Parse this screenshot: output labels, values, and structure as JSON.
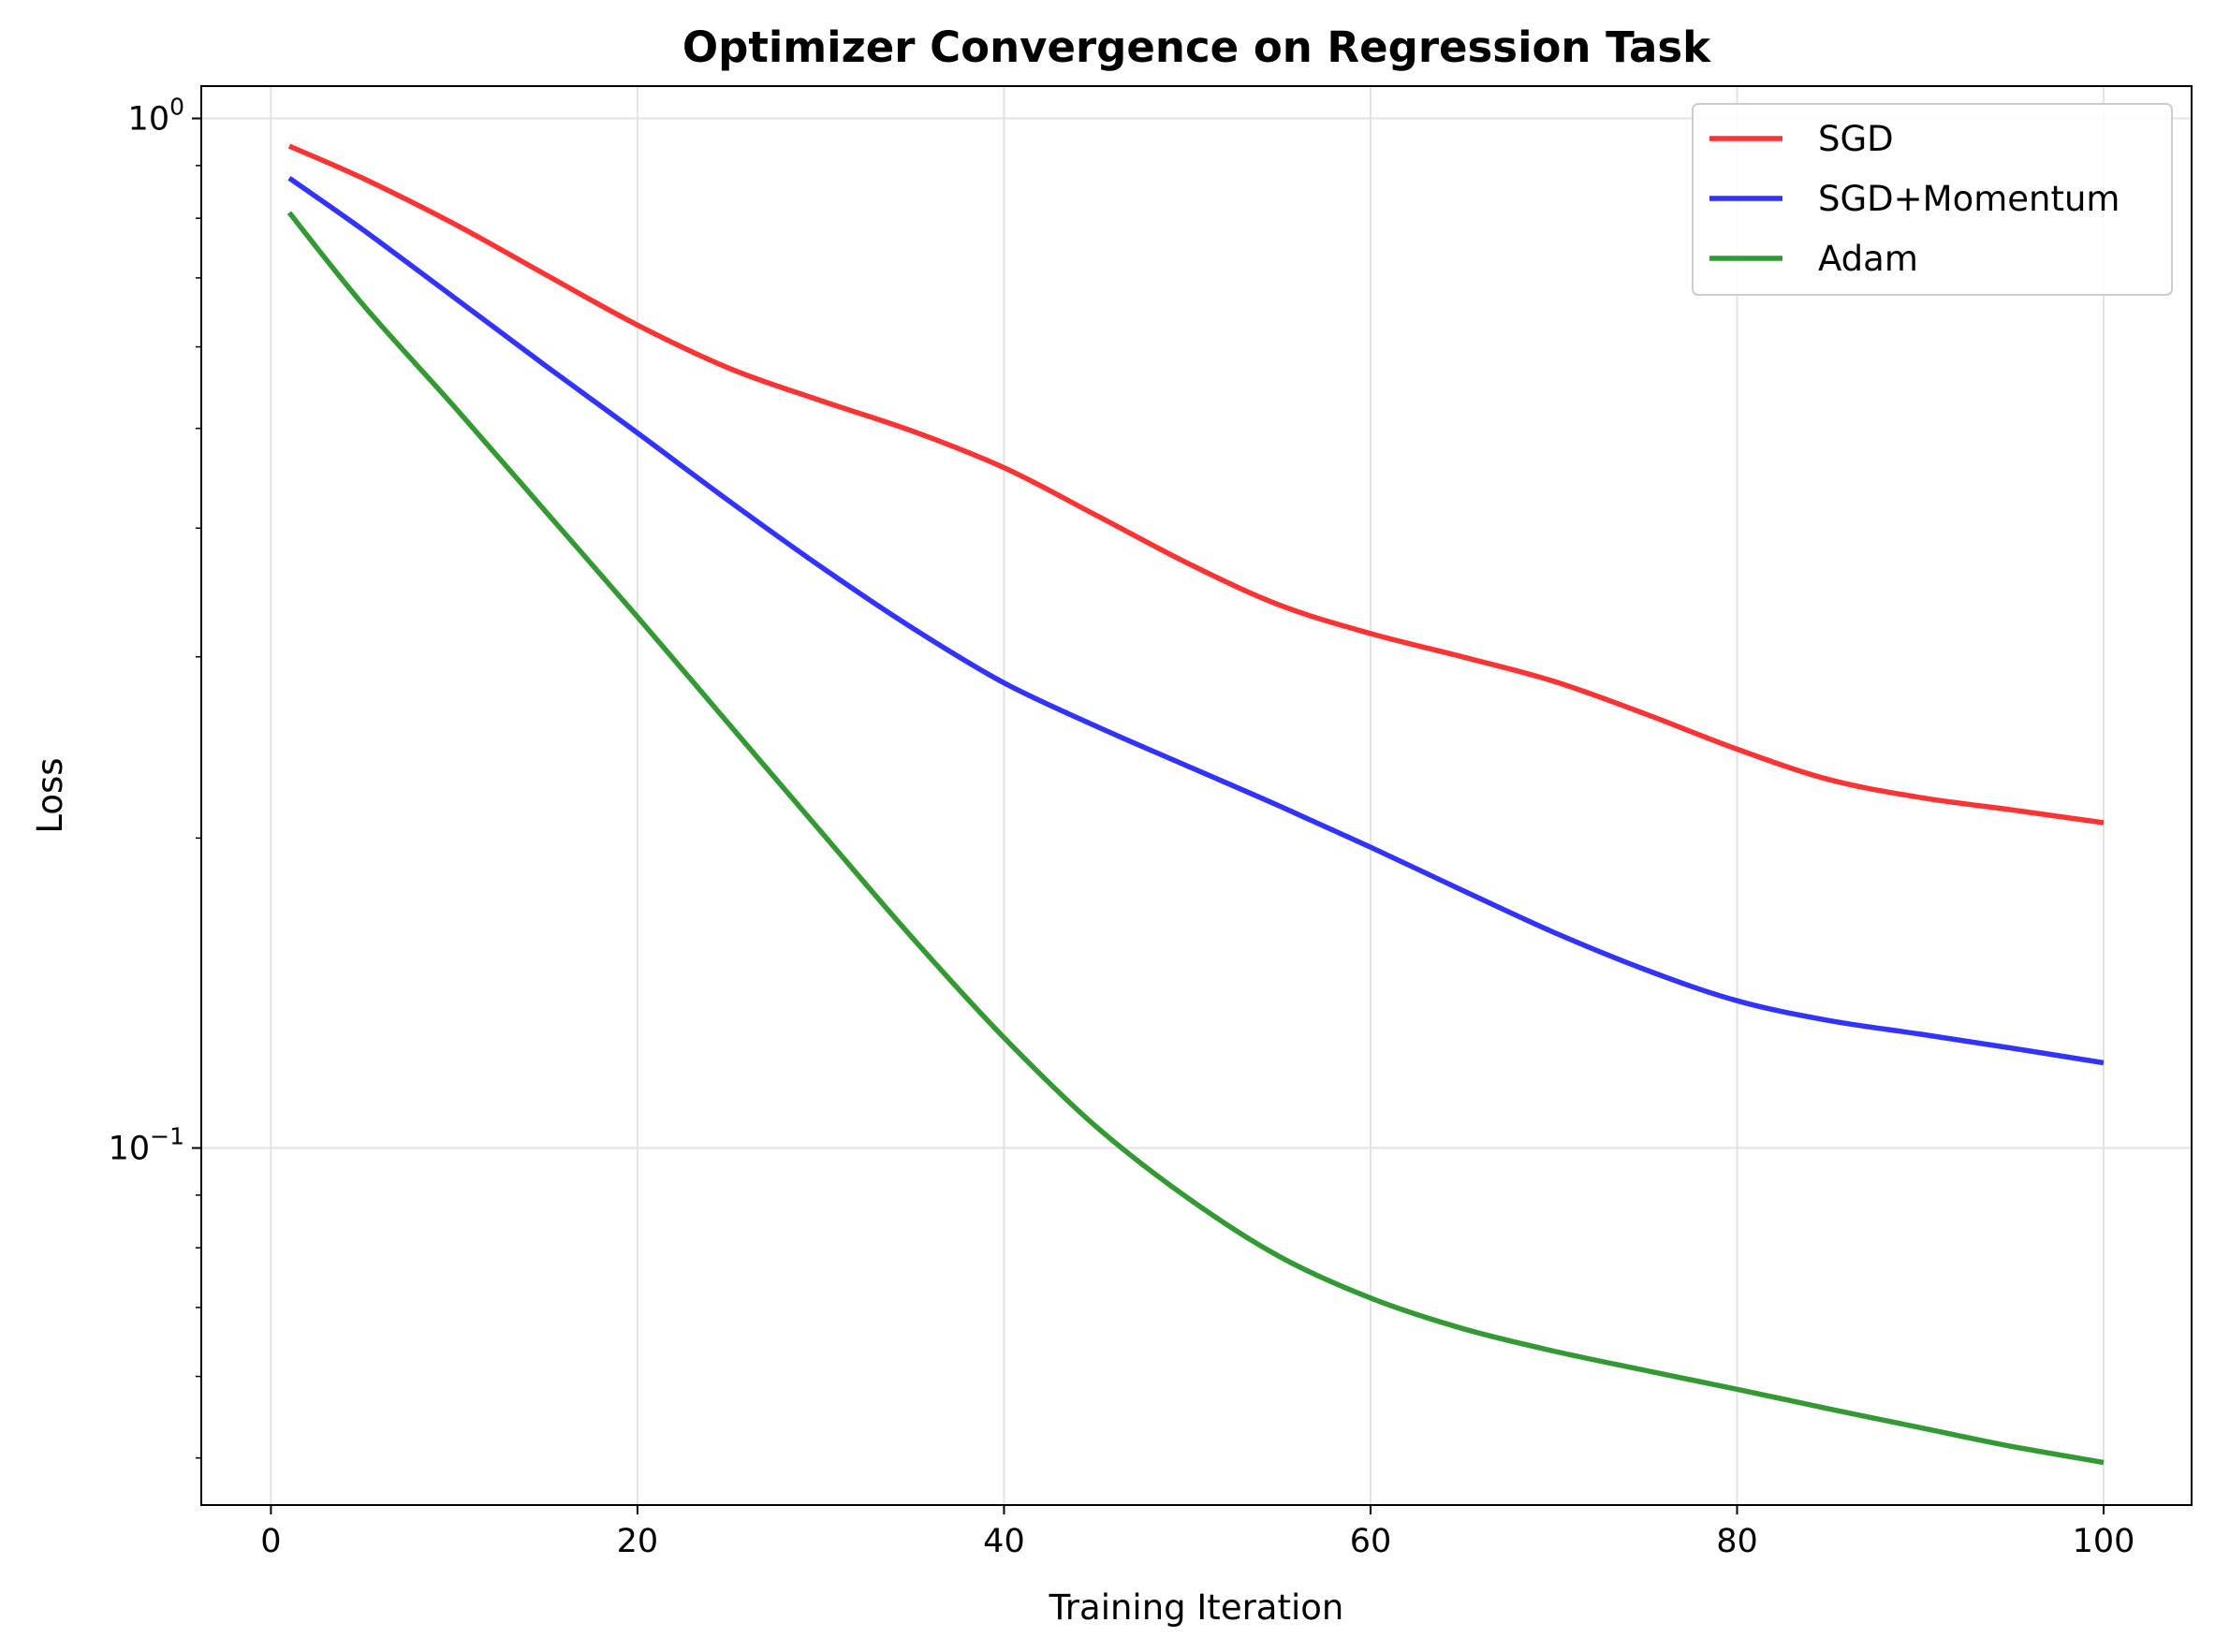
{
  "chart_data": {
    "type": "line",
    "title": "Optimizer Convergence on Regression Task",
    "xlabel": "Training Iteration",
    "ylabel": "Loss",
    "xlim": [
      -3.8,
      104.8
    ],
    "ylim": [
      0.045,
      1.075
    ],
    "yscale": "log",
    "x_ticks": [
      0,
      20,
      40,
      60,
      80,
      100
    ],
    "x_tick_labels": [
      "0",
      "20",
      "40",
      "60",
      "80",
      "100"
    ],
    "y_ticks": [
      1.0,
      0.1
    ],
    "y_tick_labels": [
      {
        "base": "10",
        "exp": "0"
      },
      {
        "base": "10",
        "exp": "−1"
      }
    ],
    "grid": true,
    "legend_position": "top-right",
    "series": [
      {
        "name": "SGD",
        "color": "#ff3333",
        "x": [
          1,
          5,
          10,
          15,
          20,
          25,
          30,
          35,
          40,
          45,
          50,
          55,
          60,
          65,
          70,
          75,
          80,
          85,
          90,
          95,
          100
        ],
        "y": [
          0.94,
          0.875,
          0.79,
          0.705,
          0.63,
          0.572,
          0.532,
          0.497,
          0.458,
          0.412,
          0.37,
          0.337,
          0.316,
          0.3,
          0.284,
          0.264,
          0.244,
          0.228,
          0.219,
          0.213,
          0.207
        ]
      },
      {
        "name": "SGD+Momentum",
        "color": "#3333ff",
        "x": [
          1,
          5,
          10,
          15,
          20,
          25,
          30,
          35,
          40,
          45,
          50,
          55,
          60,
          65,
          70,
          75,
          80,
          85,
          90,
          95,
          100
        ],
        "y": [
          0.875,
          0.78,
          0.67,
          0.575,
          0.495,
          0.425,
          0.367,
          0.32,
          0.283,
          0.257,
          0.235,
          0.215,
          0.196,
          0.178,
          0.162,
          0.149,
          0.139,
          0.133,
          0.129,
          0.125,
          0.121
        ]
      },
      {
        "name": "Adam",
        "color": "#339933",
        "x": [
          1,
          5,
          10,
          15,
          20,
          25,
          30,
          35,
          40,
          45,
          50,
          55,
          60,
          65,
          70,
          75,
          80,
          85,
          90,
          95,
          100
        ],
        "y": [
          0.81,
          0.66,
          0.525,
          0.415,
          0.328,
          0.258,
          0.203,
          0.16,
          0.128,
          0.105,
          0.0895,
          0.0785,
          0.0715,
          0.0668,
          0.0635,
          0.0608,
          0.0583,
          0.0558,
          0.0535,
          0.0513,
          0.0495
        ]
      }
    ]
  }
}
